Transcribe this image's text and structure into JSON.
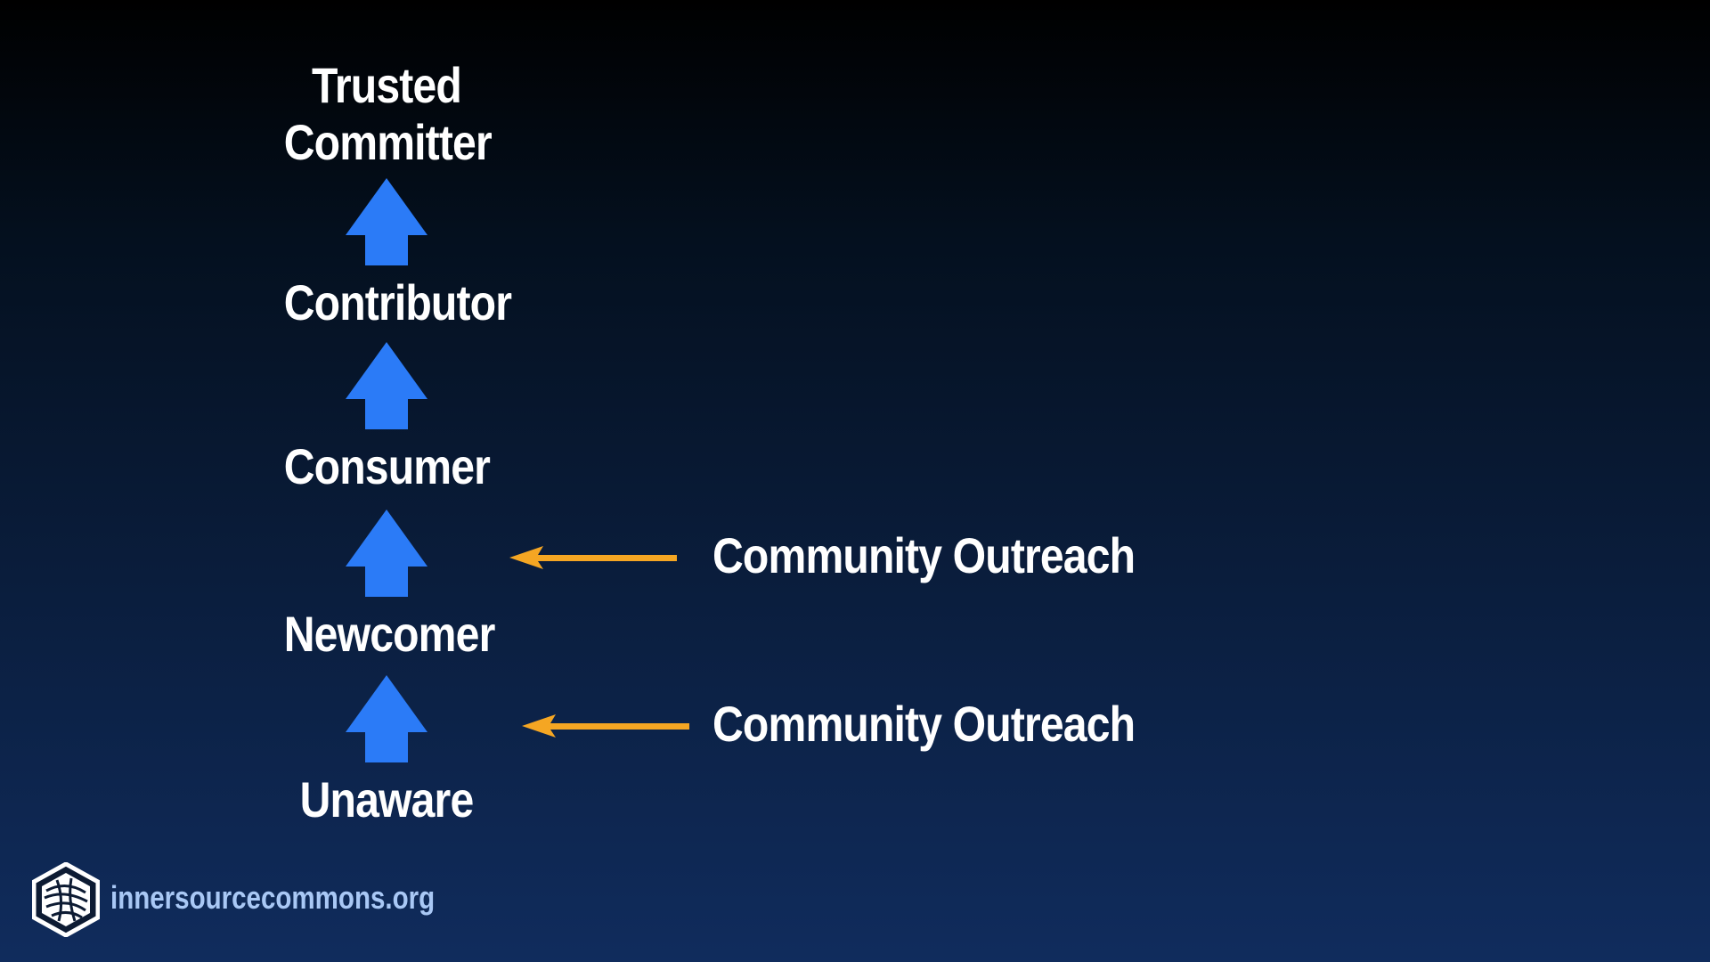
{
  "colors": {
    "stage_arrow": "#2b7bf7",
    "outreach_arrow": "#f5a623",
    "text": "#ffffff",
    "url_text": "#a9c8f5"
  },
  "stages": {
    "trusted_committer_line1": "Trusted",
    "trusted_committer_line2": "Committer",
    "contributor": "Contributor",
    "consumer": "Consumer",
    "newcomer": "Newcomer",
    "unaware": "Unaware"
  },
  "outreach": [
    {
      "label": "Community Outreach"
    },
    {
      "label": "Community Outreach"
    }
  ],
  "footer": {
    "logo_icon": "innersource-commons-hexagon-logo",
    "url": "innersourcecommons.org"
  }
}
